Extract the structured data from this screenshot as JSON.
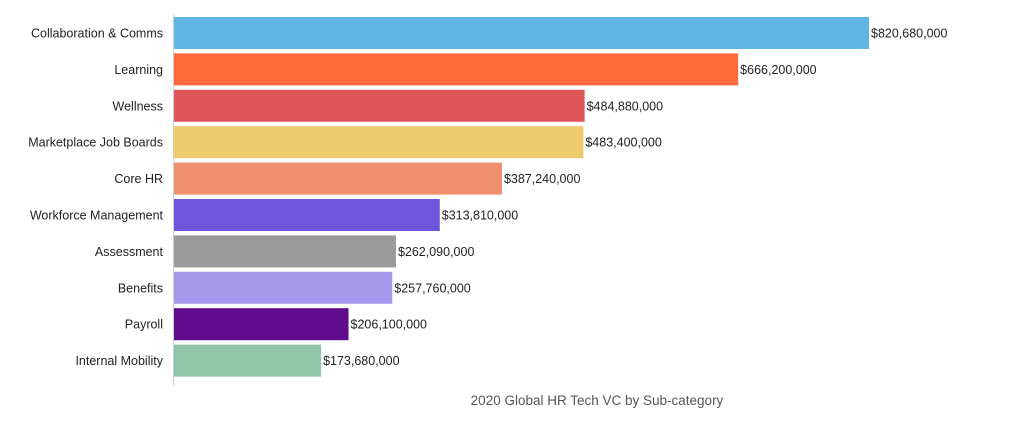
{
  "chart_data": {
    "type": "bar",
    "orientation": "horizontal",
    "title": "",
    "xlabel": "2020 Global HR Tech VC by Sub-category",
    "ylabel": "",
    "xlim": [
      0,
      820680000
    ],
    "grid": false,
    "legend": "none",
    "categories": [
      "Collaboration & Comms",
      "Learning",
      "Wellness",
      "Marketplace Job Boards",
      "Core HR",
      "Workforce Management",
      "Assessment",
      "Benefits",
      "Payroll",
      "Internal Mobility"
    ],
    "values": [
      820680000,
      666200000,
      484880000,
      483400000,
      387240000,
      313810000,
      262090000,
      257760000,
      206100000,
      173680000
    ],
    "value_labels": [
      "$820,680,000",
      "$666,200,000",
      "$484,880,000",
      "$483,400,000",
      "$387,240,000",
      "$313,810,000",
      "$262,090,000",
      "$257,760,000",
      "$206,100,000",
      "$173,680,000"
    ],
    "colors": [
      "#5fb6e6",
      "#ff6a3d",
      "#de5659",
      "#eecb6c",
      "#ef8f6b",
      "#6f55db",
      "#9a9a9a",
      "#a698ec",
      "#5e0b8c",
      "#8fc5a8"
    ]
  }
}
